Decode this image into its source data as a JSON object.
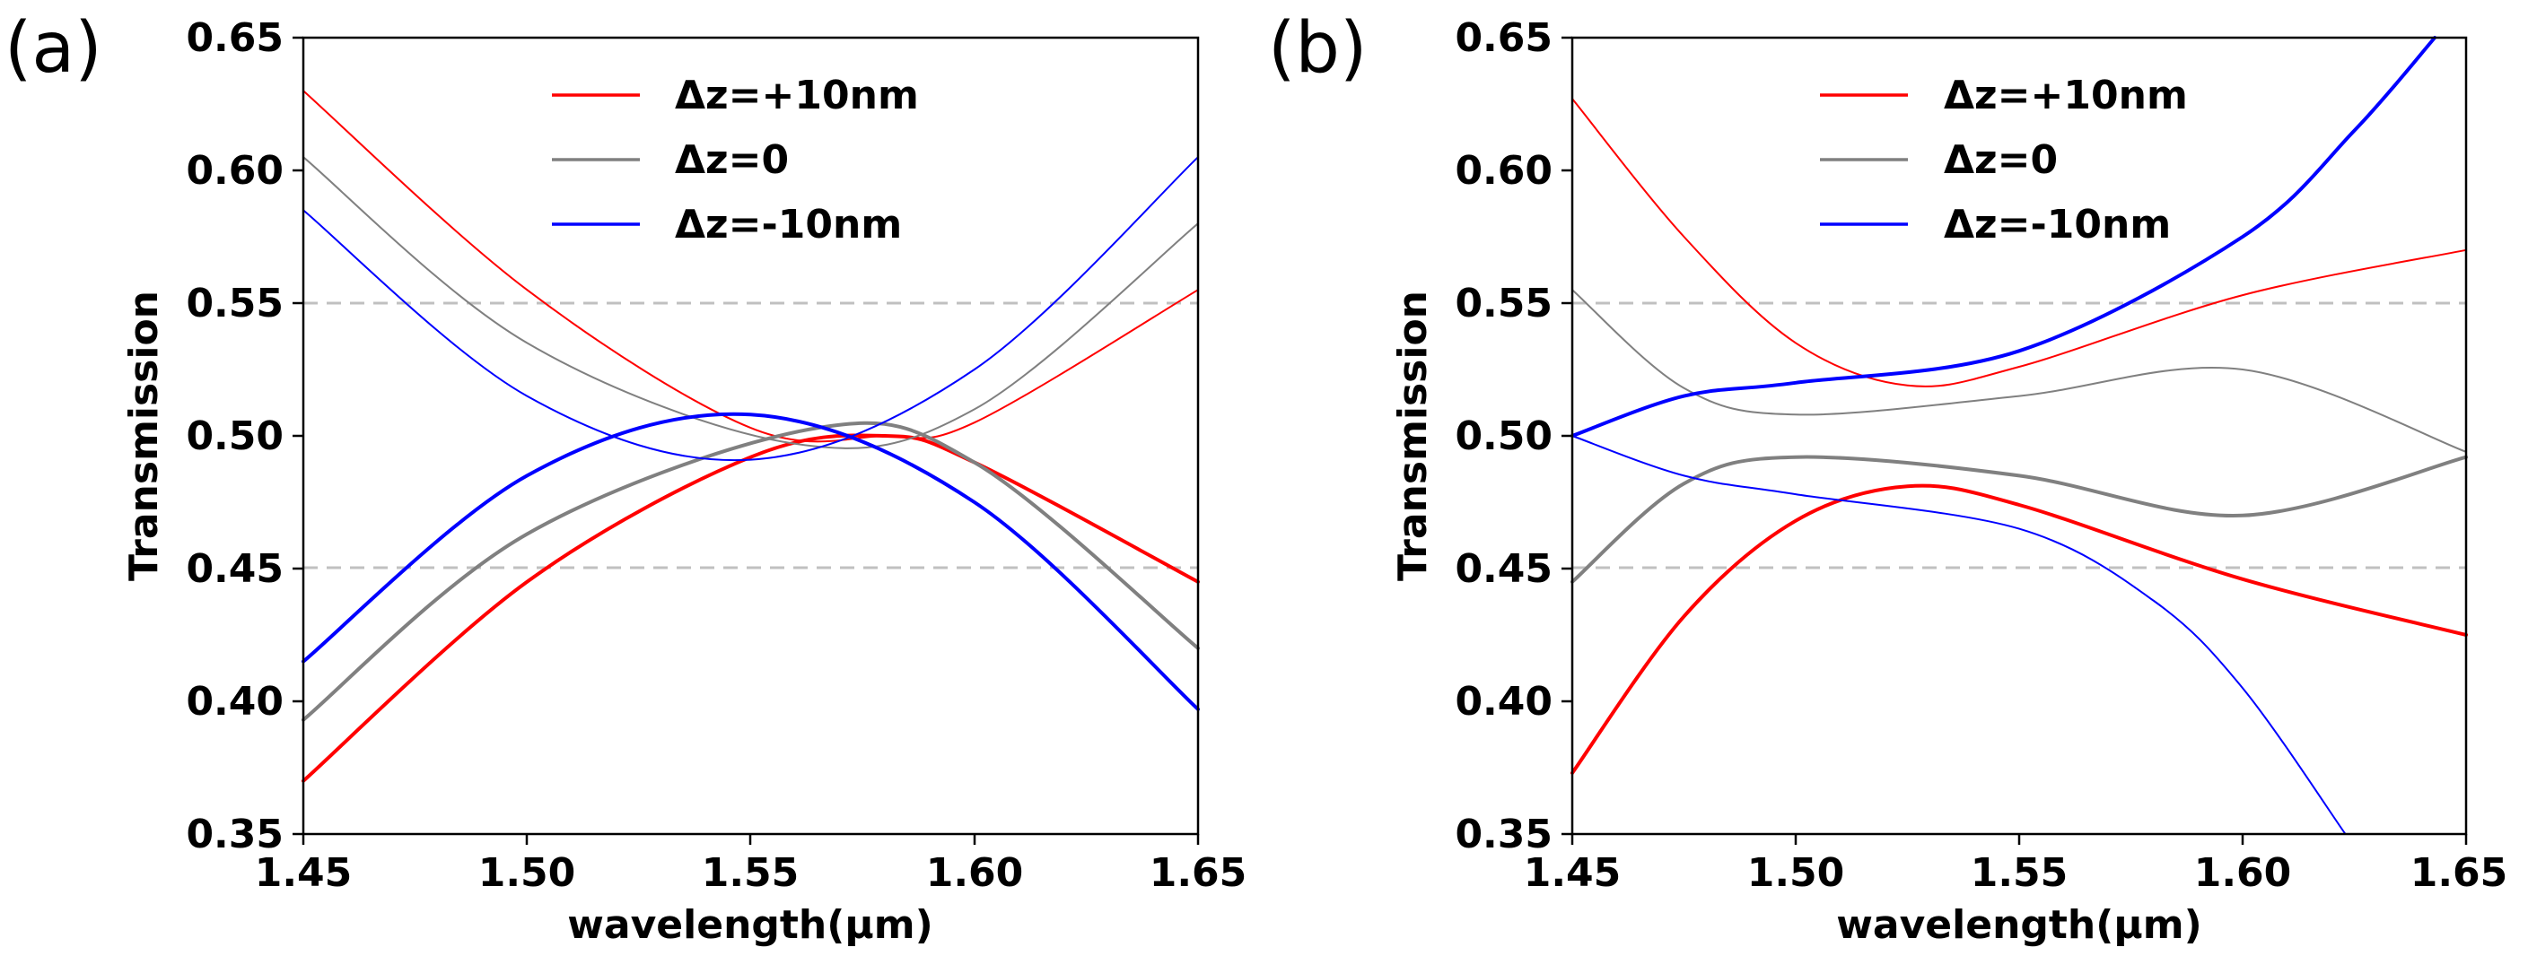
{
  "colors": {
    "red": "#ff0000",
    "gray": "#808080",
    "blue": "#0000ff",
    "ref": "#c0c0c0"
  },
  "chart_data": [
    {
      "panel": "(a)",
      "type": "line",
      "xlabel": "wavelength(μm)",
      "ylabel": "Transmission",
      "xlim": [
        1.45,
        1.65
      ],
      "ylim": [
        0.35,
        0.65
      ],
      "xticks": [
        "1.45",
        "1.50",
        "1.55",
        "1.60",
        "1.65"
      ],
      "yticks": [
        "0.35",
        "0.40",
        "0.45",
        "0.50",
        "0.55",
        "0.60",
        "0.65"
      ],
      "legend_position": "top-center",
      "legend": [
        "Δz=+10nm",
        "Δz=0",
        "Δz=-10nm"
      ],
      "reference_lines": [
        0.45,
        0.55
      ],
      "series": [
        {
          "name": "Δz=+10nm",
          "color": "red",
          "width": "thin",
          "x": [
            1.45,
            1.5,
            1.55,
            1.58,
            1.6,
            1.65
          ],
          "y": [
            0.63,
            0.555,
            0.503,
            0.5,
            0.505,
            0.555
          ]
        },
        {
          "name": "Δz=+10nm",
          "color": "red",
          "width": "thick",
          "x": [
            1.45,
            1.5,
            1.55,
            1.58,
            1.6,
            1.65
          ],
          "y": [
            0.37,
            0.445,
            0.492,
            0.5,
            0.49,
            0.445
          ]
        },
        {
          "name": "Δz=0",
          "color": "gray",
          "width": "thin",
          "x": [
            1.45,
            1.5,
            1.56,
            1.6,
            1.65
          ],
          "y": [
            0.605,
            0.535,
            0.497,
            0.51,
            0.58
          ]
        },
        {
          "name": "Δz=0",
          "color": "gray",
          "width": "thick",
          "x": [
            1.45,
            1.5,
            1.565,
            1.6,
            1.65
          ],
          "y": [
            0.393,
            0.463,
            0.503,
            0.49,
            0.42
          ]
        },
        {
          "name": "Δz=-10nm",
          "color": "blue",
          "width": "thin",
          "x": [
            1.45,
            1.5,
            1.55,
            1.6,
            1.65
          ],
          "y": [
            0.585,
            0.515,
            0.491,
            0.525,
            0.605
          ]
        },
        {
          "name": "Δz=-10nm",
          "color": "blue",
          "width": "thick",
          "x": [
            1.45,
            1.5,
            1.55,
            1.6,
            1.65
          ],
          "y": [
            0.415,
            0.485,
            0.508,
            0.475,
            0.397
          ]
        }
      ]
    },
    {
      "panel": "(b)",
      "type": "line",
      "xlabel": "wavelength(μm)",
      "ylabel": "Transmission",
      "xlim": [
        1.45,
        1.65
      ],
      "ylim": [
        0.35,
        0.65
      ],
      "xticks": [
        "1.45",
        "1.50",
        "1.55",
        "1.60",
        "1.65"
      ],
      "yticks": [
        "0.35",
        "0.40",
        "0.45",
        "0.50",
        "0.55",
        "0.60",
        "0.65"
      ],
      "legend_position": "top-center",
      "legend": [
        "Δz=+10nm",
        "Δz=0",
        "Δz=-10nm"
      ],
      "reference_lines": [
        0.45,
        0.55
      ],
      "series": [
        {
          "name": "Δz=+10nm",
          "color": "red",
          "width": "thin",
          "x": [
            1.45,
            1.475,
            1.5,
            1.525,
            1.55,
            1.6,
            1.65
          ],
          "y": [
            0.627,
            0.575,
            0.535,
            0.519,
            0.526,
            0.553,
            0.57
          ]
        },
        {
          "name": "Δz=+10nm",
          "color": "red",
          "width": "thick",
          "x": [
            1.45,
            1.475,
            1.5,
            1.525,
            1.55,
            1.6,
            1.65
          ],
          "y": [
            0.373,
            0.432,
            0.468,
            0.481,
            0.474,
            0.446,
            0.425
          ]
        },
        {
          "name": "Δz=0",
          "color": "gray",
          "width": "thin",
          "x": [
            1.45,
            1.475,
            1.5,
            1.55,
            1.6,
            1.65
          ],
          "y": [
            0.555,
            0.518,
            0.508,
            0.515,
            0.525,
            0.494
          ]
        },
        {
          "name": "Δz=0",
          "color": "gray",
          "width": "thick",
          "x": [
            1.45,
            1.475,
            1.5,
            1.55,
            1.6,
            1.65
          ],
          "y": [
            0.445,
            0.482,
            0.492,
            0.485,
            0.47,
            0.492
          ]
        },
        {
          "name": "Δz=-10nm",
          "color": "blue",
          "width": "thin",
          "x": [
            1.45,
            1.475,
            1.5,
            1.55,
            1.58,
            1.6,
            1.623
          ],
          "y": [
            0.5,
            0.485,
            0.478,
            0.465,
            0.438,
            0.405,
            0.35
          ]
        },
        {
          "name": "Δz=-10nm",
          "color": "blue",
          "width": "thick",
          "x": [
            1.45,
            1.475,
            1.5,
            1.55,
            1.6,
            1.625,
            1.643
          ],
          "y": [
            0.5,
            0.515,
            0.52,
            0.532,
            0.575,
            0.615,
            0.65
          ]
        }
      ]
    }
  ]
}
